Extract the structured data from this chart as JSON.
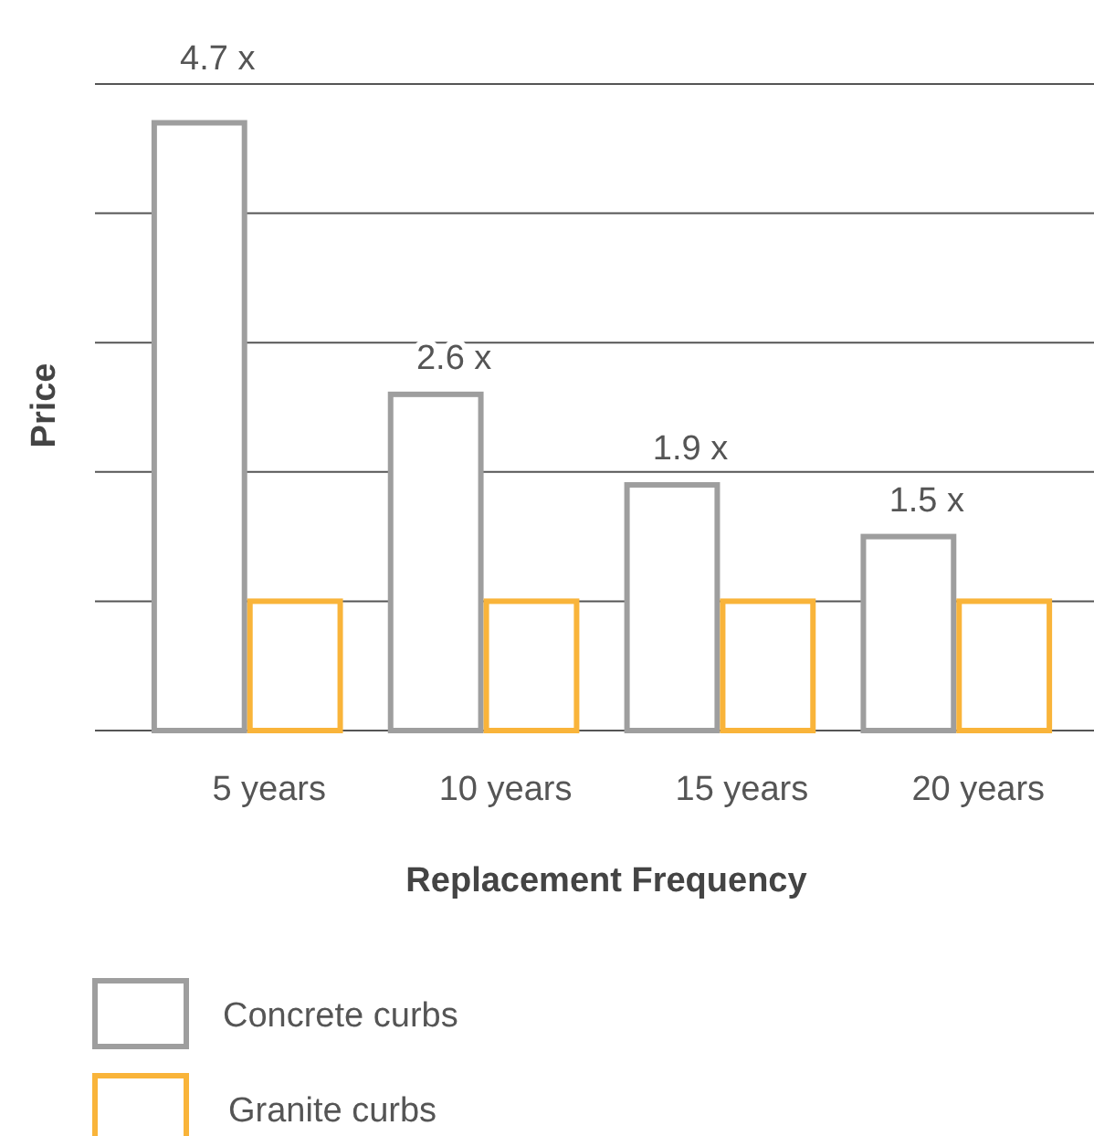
{
  "chart_data": {
    "type": "bar",
    "xlabel": "Replacement Frequency",
    "ylabel": "Price",
    "categories": [
      "5 years",
      "10 years",
      "15 years",
      "20 years"
    ],
    "series": [
      {
        "name": "Concrete curbs",
        "color": "#9e9e9e",
        "values": [
          4.7,
          2.6,
          1.9,
          1.5
        ],
        "value_labels": [
          "4.7 x",
          "2.6 x",
          "1.9 x",
          "1.5 x"
        ]
      },
      {
        "name": "Granite curbs",
        "color": "#f9b43a",
        "values": [
          1,
          1,
          1,
          1
        ]
      }
    ],
    "ylim": [
      0,
      5
    ],
    "yticks": [
      {
        "value": 0,
        "label": null
      },
      {
        "value": 1,
        "label": null
      },
      {
        "value": 2,
        "label": null
      },
      {
        "value": 3,
        "label": null
      },
      {
        "value": 4,
        "label": null
      },
      {
        "value": 5,
        "label": null
      }
    ],
    "tick_labels": "x",
    "grid": "y",
    "legend": "bottom"
  }
}
